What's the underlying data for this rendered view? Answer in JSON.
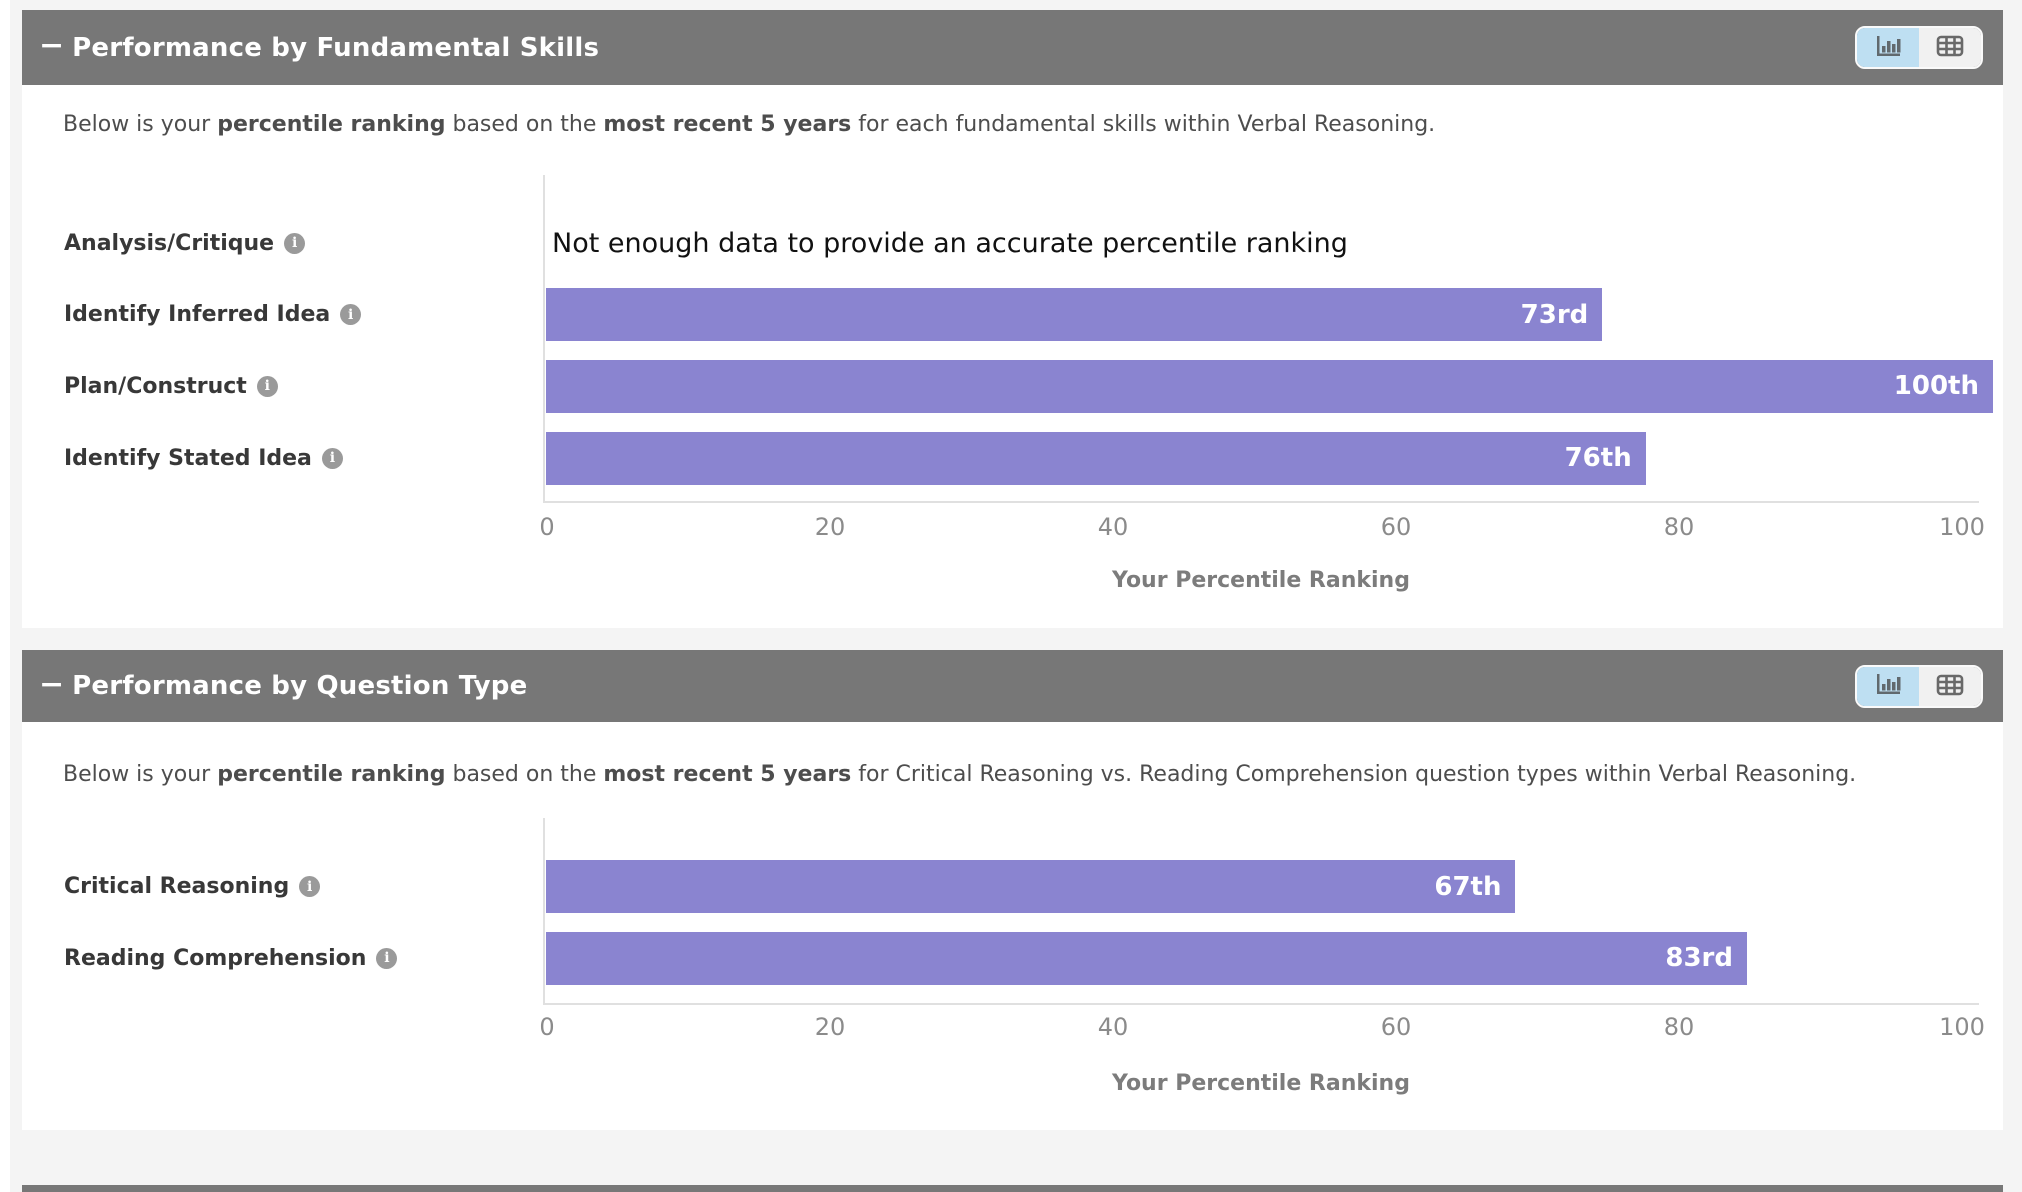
{
  "panels": [
    {
      "title": "Performance by Fundamental Skills",
      "collapse_glyph": "−",
      "description": {
        "lead": "Below is your ",
        "bold1": "percentile ranking",
        "mid": " based on the ",
        "bold2": "most recent 5 years",
        "tail": " for each fundamental skills within Verbal Reasoning."
      },
      "view_toggle": {
        "active_view": "chart",
        "chart_icon": "bar-chart-icon",
        "table_icon": "table-icon"
      }
    },
    {
      "title": "Performance by Question Type",
      "collapse_glyph": "−",
      "description": {
        "lead": "Below is your ",
        "bold1": "percentile ranking",
        "mid": " based on the ",
        "bold2": "most recent 5 years",
        "tail": " for Critical Reasoning vs. Reading Comprehension question types within Verbal Reasoning."
      },
      "view_toggle": {
        "active_view": "chart",
        "chart_icon": "bar-chart-icon",
        "table_icon": "table-icon"
      }
    }
  ],
  "chart_data": [
    {
      "type": "bar",
      "orientation": "horizontal",
      "title": "",
      "categories": [
        "Analysis/Critique",
        "Identify Inferred Idea",
        "Plan/Construct",
        "Identify Stated Idea"
      ],
      "values": [
        null,
        73,
        100,
        76
      ],
      "value_labels": [
        null,
        "73rd",
        "100th",
        "76th"
      ],
      "no_data_message": "Not enough data to provide an accurate percentile ranking",
      "xlabel": "Your Percentile Ranking",
      "xlim": [
        0,
        100
      ],
      "xticks": [
        0,
        20,
        40,
        60,
        80,
        100
      ],
      "grid": false,
      "bar_color": "#8a84d0",
      "info_glyph": "i"
    },
    {
      "type": "bar",
      "orientation": "horizontal",
      "title": "",
      "categories": [
        "Critical Reasoning",
        "Reading Comprehension"
      ],
      "values": [
        67,
        83
      ],
      "value_labels": [
        "67th",
        "83rd"
      ],
      "no_data_message": "Not enough data to provide an accurate percentile ranking",
      "xlabel": "Your Percentile Ranking",
      "xlim": [
        0,
        100
      ],
      "xticks": [
        0,
        20,
        40,
        60,
        80,
        100
      ],
      "grid": false,
      "bar_color": "#8a84d0",
      "info_glyph": "i"
    }
  ],
  "colors": {
    "header_bg": "#777777",
    "bar": "#8a84d0",
    "active_toggle_bg": "#bedff2",
    "inactive_toggle_bg": "#f1f1f1",
    "page_bg": "#f4f4f4"
  }
}
